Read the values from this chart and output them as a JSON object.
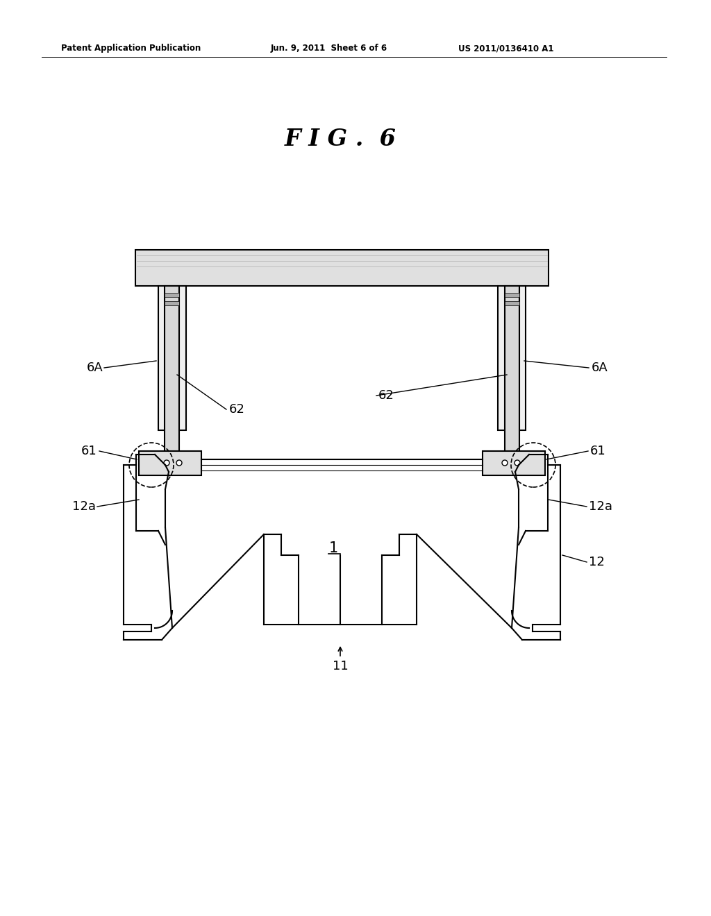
{
  "bg_color": "#ffffff",
  "line_color": "#000000",
  "header_left": "Patent Application Publication",
  "header_mid": "Jun. 9, 2011  Sheet 6 of 6",
  "header_right": "US 2011/0136410 A1",
  "fig_label": "F I G .  6",
  "labels": {
    "6A_left": "6A",
    "6A_right": "6A",
    "62_left": "62",
    "62_right": "62",
    "61_left": "61",
    "61_right": "61",
    "12a_left": "12a",
    "12a_right": "12a",
    "1": "1",
    "12": "12",
    "11": "11"
  }
}
